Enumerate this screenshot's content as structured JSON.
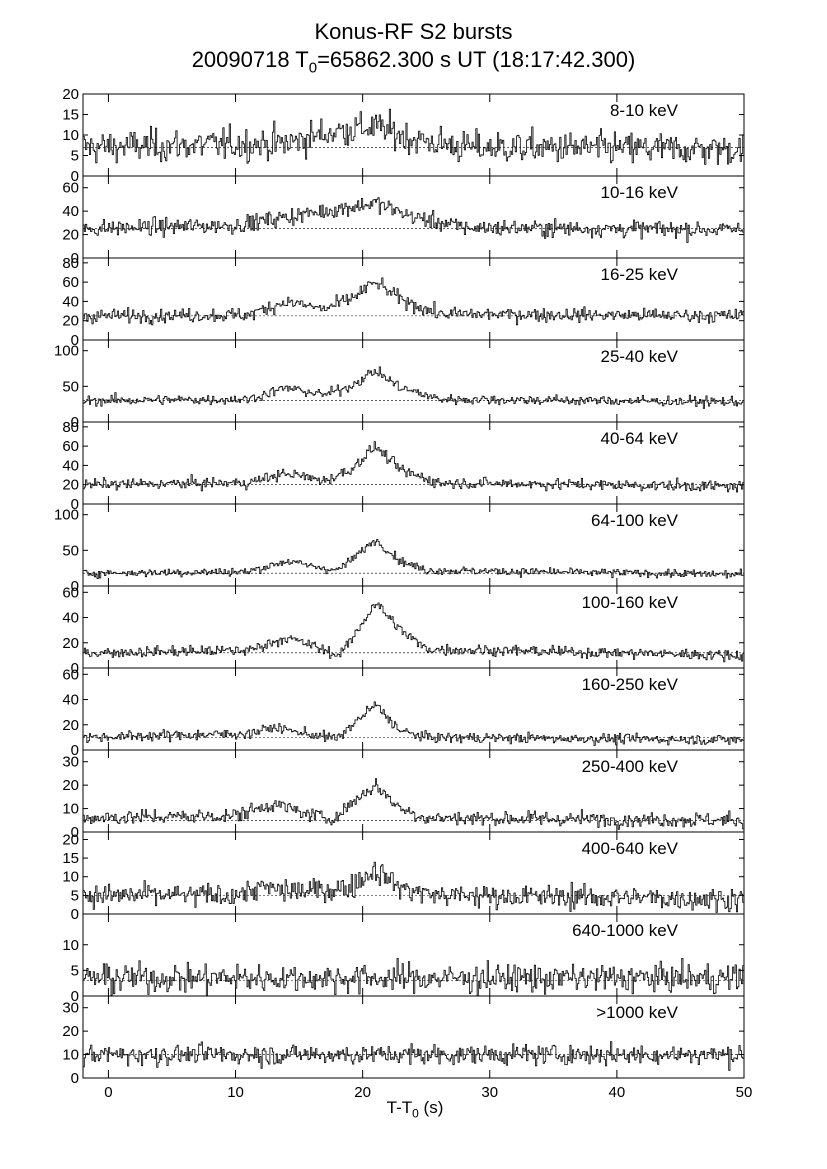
{
  "title_line1": "Konus-RF S2 bursts",
  "title_line2_prefix": "20090718 T",
  "title_line2_sub": "0",
  "title_line2_suffix": "=65862.300 s UT (18:17:42.300)",
  "xlabel_prefix": "T-T",
  "xlabel_sub": "0",
  "xlabel_suffix": " (s)",
  "chart_data": {
    "type": "line",
    "style": "step histogram, 12 stacked panels sharing x axis",
    "xlim": [
      -2,
      50
    ],
    "xticks": [
      0,
      10,
      20,
      30,
      40,
      50
    ],
    "bin_width_s": 0.1,
    "panels": [
      {
        "label": "8-10 keV",
        "ylim": [
          0,
          20
        ],
        "yticks": [
          0,
          5,
          10,
          15,
          20
        ],
        "background": 7,
        "profile": [
          [
            -2,
            7
          ],
          [
            14,
            8
          ],
          [
            18,
            11
          ],
          [
            21,
            12
          ],
          [
            24,
            9
          ],
          [
            28,
            7
          ],
          [
            50,
            6.5
          ]
        ],
        "noise": 2.8
      },
      {
        "label": "10-16 keV",
        "ylim": [
          0,
          70
        ],
        "yticks": [
          0,
          20,
          40,
          60
        ],
        "background": 25,
        "profile": [
          [
            -2,
            25
          ],
          [
            10,
            28
          ],
          [
            14,
            35
          ],
          [
            17,
            40
          ],
          [
            21,
            47
          ],
          [
            24,
            35
          ],
          [
            28,
            26
          ],
          [
            50,
            24
          ]
        ],
        "noise": 5
      },
      {
        "label": "16-25 keV",
        "ylim": [
          0,
          85
        ],
        "yticks": [
          0,
          20,
          40,
          60,
          80
        ],
        "background": 25,
        "profile": [
          [
            -2,
            25
          ],
          [
            11,
            26
          ],
          [
            14,
            40
          ],
          [
            17,
            32
          ],
          [
            19,
            42
          ],
          [
            21,
            60
          ],
          [
            23,
            42
          ],
          [
            26,
            27
          ],
          [
            50,
            25
          ]
        ],
        "noise": 5
      },
      {
        "label": "25-40 keV",
        "ylim": [
          0,
          115
        ],
        "yticks": [
          0,
          50,
          100
        ],
        "background": 30,
        "profile": [
          [
            -2,
            30
          ],
          [
            11,
            32
          ],
          [
            14,
            48
          ],
          [
            17,
            38
          ],
          [
            19,
            50
          ],
          [
            21,
            72
          ],
          [
            23,
            48
          ],
          [
            26,
            32
          ],
          [
            50,
            28
          ]
        ],
        "noise": 5
      },
      {
        "label": "40-64 keV",
        "ylim": [
          0,
          85
        ],
        "yticks": [
          0,
          20,
          40,
          60,
          80
        ],
        "background": 20,
        "profile": [
          [
            -2,
            20
          ],
          [
            11,
            22
          ],
          [
            14,
            32
          ],
          [
            17,
            24
          ],
          [
            19,
            35
          ],
          [
            21,
            60
          ],
          [
            23,
            35
          ],
          [
            26,
            22
          ],
          [
            50,
            18
          ]
        ],
        "noise": 4
      },
      {
        "label": "64-100 keV",
        "ylim": [
          0,
          115
        ],
        "yticks": [
          0,
          50,
          100
        ],
        "background": 18,
        "profile": [
          [
            -2,
            18
          ],
          [
            11,
            20
          ],
          [
            14,
            35
          ],
          [
            16,
            28
          ],
          [
            18,
            22
          ],
          [
            19,
            35
          ],
          [
            21,
            65
          ],
          [
            23,
            35
          ],
          [
            25,
            22
          ],
          [
            50,
            16
          ]
        ],
        "noise": 4
      },
      {
        "label": "100-160 keV",
        "ylim": [
          0,
          65
        ],
        "yticks": [
          0,
          20,
          40,
          60
        ],
        "background": 12,
        "profile": [
          [
            -2,
            12
          ],
          [
            11,
            14
          ],
          [
            14,
            24
          ],
          [
            16,
            18
          ],
          [
            18,
            10
          ],
          [
            19,
            20
          ],
          [
            21,
            52
          ],
          [
            23,
            30
          ],
          [
            25,
            15
          ],
          [
            50,
            10
          ]
        ],
        "noise": 3
      },
      {
        "label": "160-250 keV",
        "ylim": [
          0,
          65
        ],
        "yticks": [
          0,
          20,
          40,
          60
        ],
        "background": 10,
        "profile": [
          [
            -2,
            10
          ],
          [
            11,
            13
          ],
          [
            13,
            18
          ],
          [
            15,
            14
          ],
          [
            18,
            9
          ],
          [
            19,
            18
          ],
          [
            21,
            36
          ],
          [
            23,
            15
          ],
          [
            25,
            10
          ],
          [
            50,
            8
          ]
        ],
        "noise": 2.8
      },
      {
        "label": "250-400 keV",
        "ylim": [
          0,
          35
        ],
        "yticks": [
          0,
          10,
          20,
          30
        ],
        "background": 5,
        "profile": [
          [
            -2,
            6
          ],
          [
            10,
            7
          ],
          [
            13,
            12
          ],
          [
            16,
            7
          ],
          [
            18,
            6
          ],
          [
            19,
            12
          ],
          [
            21,
            20
          ],
          [
            23,
            10
          ],
          [
            25,
            6
          ],
          [
            50,
            5
          ]
        ],
        "noise": 2.2
      },
      {
        "label": "400-640 keV",
        "ylim": [
          0,
          22
        ],
        "yticks": [
          0,
          5,
          10,
          15,
          20
        ],
        "background": 5,
        "profile": [
          [
            -2,
            5
          ],
          [
            10,
            5
          ],
          [
            12,
            7
          ],
          [
            15,
            6
          ],
          [
            19,
            7
          ],
          [
            21,
            12
          ],
          [
            23,
            7
          ],
          [
            26,
            5
          ],
          [
            50,
            4
          ]
        ],
        "noise": 2.2
      },
      {
        "label": "640-1000 keV",
        "ylim": [
          0,
          16
        ],
        "yticks": [
          0,
          5,
          10
        ],
        "background": 3,
        "profile": [
          [
            -2,
            3.5
          ],
          [
            50,
            3.5
          ]
        ],
        "noise": 2.0
      },
      {
        "label": ">1000 keV",
        "ylim": [
          0,
          35
        ],
        "yticks": [
          0,
          10,
          20,
          30
        ],
        "background": 10,
        "profile": [
          [
            -2,
            10
          ],
          [
            50,
            10
          ]
        ],
        "noise": 3.0
      }
    ]
  }
}
